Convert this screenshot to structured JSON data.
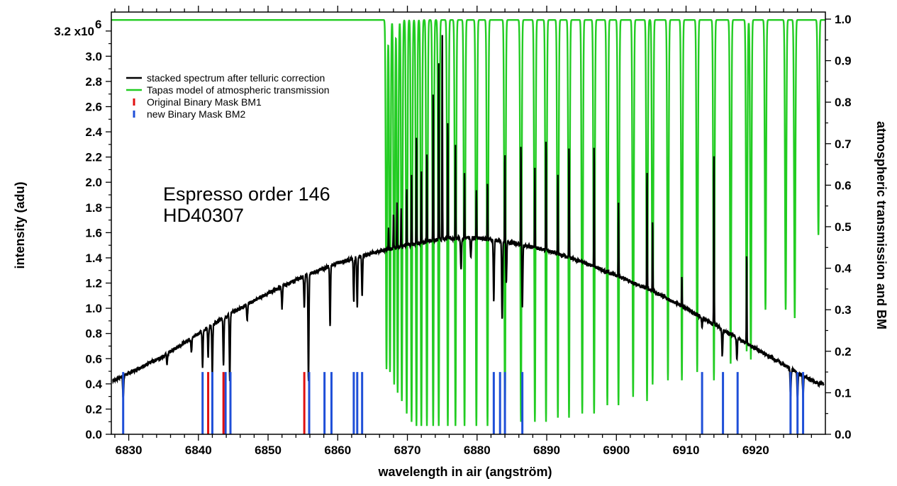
{
  "chart_data": {
    "type": "line",
    "xlabel": "wavelength in air (angström)",
    "ylabel_left": "intensity (adu)",
    "ylabel_right": "atmospheric transmission and BM",
    "xlim": [
      6827.5,
      6930
    ],
    "ylim_left": [
      0,
      3.3
    ],
    "ylim_right": [
      0,
      1.0
    ],
    "x_ticks": [
      6830,
      6840,
      6850,
      6860,
      6870,
      6880,
      6890,
      6900,
      6910,
      6920
    ],
    "y_left_ticks": [
      0.0,
      0.2,
      0.4,
      0.6,
      0.8,
      1.0,
      1.2,
      1.4,
      1.6,
      1.8,
      2.0,
      2.2,
      2.4,
      2.6,
      2.8,
      3.0
    ],
    "y_left_ticks_text": [
      "0.0",
      "0.2",
      "0.4",
      "0.6",
      "0.8",
      "1.0",
      "1.2",
      "1.4",
      "1.6",
      "1.8",
      "2.0",
      "2.2",
      "2.4",
      "2.6",
      "2.8",
      "3.0"
    ],
    "y_left_top_label": {
      "value": 3.2,
      "mantissa": "3.2 x10",
      "exponent": "6"
    },
    "y_right_ticks": [
      0.0,
      0.1,
      0.2,
      0.3,
      0.4,
      0.5,
      0.6,
      0.7,
      0.8,
      0.9,
      1.0
    ],
    "y_right_ticks_text": [
      "0.0",
      "0.1",
      "0.2",
      "0.3",
      "0.4",
      "0.5",
      "0.6",
      "0.7",
      "0.8",
      "0.9",
      "1.0"
    ],
    "grid": false,
    "legend_position": "top-left",
    "legend": [
      {
        "label": "stacked spectrum after telluric correction",
        "color": "#000000",
        "marker": "line"
      },
      {
        "label": "Tapas model of atmospheric transmission",
        "color": "#22cc22",
        "marker": "line"
      },
      {
        "label": "Original Binary Mask BM1",
        "color": "#e01010",
        "marker": "bar"
      },
      {
        "label": "new Binary Mask BM2",
        "color": "#1f4fd8",
        "marker": "bar"
      }
    ],
    "annotation": [
      "Espresso order 146",
      "HD40307"
    ],
    "series": [
      {
        "name": "stacked spectrum after telluric correction",
        "color": "#000000",
        "axis": "left",
        "continuum_x": [
          6828,
          6835,
          6840,
          6845,
          6850,
          6855,
          6860,
          6865,
          6870,
          6875,
          6880,
          6885,
          6890,
          6895,
          6900,
          6905,
          6910,
          6915,
          6920,
          6925,
          6929
        ],
        "continuum_y": [
          0.43,
          0.62,
          0.8,
          0.97,
          1.12,
          1.25,
          1.36,
          1.44,
          1.5,
          1.55,
          1.56,
          1.52,
          1.46,
          1.37,
          1.26,
          1.14,
          1.0,
          0.84,
          0.68,
          0.52,
          0.4
        ],
        "absorption_lines": [
          {
            "x": 6829.2,
            "y": 0.28
          },
          {
            "x": 6835.5,
            "y": 0.56
          },
          {
            "x": 6839.0,
            "y": 0.65
          },
          {
            "x": 6840.6,
            "y": 0.53
          },
          {
            "x": 6841.4,
            "y": 0.62
          },
          {
            "x": 6842.0,
            "y": 0.48
          },
          {
            "x": 6843.6,
            "y": 0.55
          },
          {
            "x": 6844.5,
            "y": 0.43
          },
          {
            "x": 6847.0,
            "y": 0.9
          },
          {
            "x": 6852.0,
            "y": 1.0
          },
          {
            "x": 6855.2,
            "y": 1.0
          },
          {
            "x": 6855.8,
            "y": 0.42
          },
          {
            "x": 6858.9,
            "y": 0.85
          },
          {
            "x": 6862.3,
            "y": 1.05
          },
          {
            "x": 6862.8,
            "y": 1.0
          },
          {
            "x": 6863.5,
            "y": 1.1
          },
          {
            "x": 6877.7,
            "y": 1.3
          },
          {
            "x": 6879.1,
            "y": 1.4
          },
          {
            "x": 6882.4,
            "y": 1.05
          },
          {
            "x": 6883.6,
            "y": 0.9
          },
          {
            "x": 6884.2,
            "y": 1.2
          },
          {
            "x": 6886.5,
            "y": 1.0
          },
          {
            "x": 6912.3,
            "y": 0.85
          },
          {
            "x": 6915.2,
            "y": 0.62
          },
          {
            "x": 6917.3,
            "y": 0.58
          },
          {
            "x": 6925.0,
            "y": 0.3
          },
          {
            "x": 6926.0,
            "y": 0.28
          },
          {
            "x": 6926.8,
            "y": 0.3
          }
        ],
        "telluric_spikes": [
          {
            "x": 6867.3,
            "y": 1.65
          },
          {
            "x": 6868.0,
            "y": 1.75
          },
          {
            "x": 6868.5,
            "y": 1.85
          },
          {
            "x": 6869.1,
            "y": 1.8
          },
          {
            "x": 6869.9,
            "y": 1.95
          },
          {
            "x": 6870.6,
            "y": 2.05
          },
          {
            "x": 6871.3,
            "y": 2.4
          },
          {
            "x": 6872.0,
            "y": 2.1
          },
          {
            "x": 6872.8,
            "y": 2.25
          },
          {
            "x": 6873.7,
            "y": 2.75
          },
          {
            "x": 6874.5,
            "y": 2.95
          },
          {
            "x": 6875.0,
            "y": 3.22
          },
          {
            "x": 6875.8,
            "y": 2.5
          },
          {
            "x": 6876.9,
            "y": 2.3
          },
          {
            "x": 6878.2,
            "y": 2.1
          },
          {
            "x": 6879.9,
            "y": 1.95
          },
          {
            "x": 6881.5,
            "y": 2.0
          },
          {
            "x": 6884.0,
            "y": 2.25
          },
          {
            "x": 6886.3,
            "y": 2.3
          },
          {
            "x": 6888.3,
            "y": 2.1
          },
          {
            "x": 6889.9,
            "y": 2.35
          },
          {
            "x": 6891.6,
            "y": 2.05
          },
          {
            "x": 6893.2,
            "y": 2.3
          },
          {
            "x": 6896.8,
            "y": 2.3
          },
          {
            "x": 6900.3,
            "y": 1.85
          },
          {
            "x": 6904.4,
            "y": 2.1
          },
          {
            "x": 6905.2,
            "y": 1.7
          },
          {
            "x": 6909.4,
            "y": 1.25
          },
          {
            "x": 6914.0,
            "y": 2.25
          },
          {
            "x": 6918.7,
            "y": 1.45
          }
        ]
      },
      {
        "name": "Tapas model of atmospheric transmission",
        "color": "#22cc22",
        "axis": "right",
        "baseline": 0.998,
        "absorption_lines": [
          {
            "x": 6867.0,
            "min": 0.16
          },
          {
            "x": 6867.5,
            "min": 0.15
          },
          {
            "x": 6868.1,
            "min": 0.12
          },
          {
            "x": 6868.6,
            "min": 0.1
          },
          {
            "x": 6869.2,
            "min": 0.08
          },
          {
            "x": 6869.9,
            "min": 0.05
          },
          {
            "x": 6870.6,
            "min": 0.03
          },
          {
            "x": 6871.3,
            "min": 0.02
          },
          {
            "x": 6872.0,
            "min": 0.02
          },
          {
            "x": 6872.8,
            "min": 0.02
          },
          {
            "x": 6873.7,
            "min": 0.02
          },
          {
            "x": 6874.5,
            "min": 0.02
          },
          {
            "x": 6875.8,
            "min": 0.02
          },
          {
            "x": 6876.9,
            "min": 0.02
          },
          {
            "x": 6878.2,
            "min": 0.02
          },
          {
            "x": 6879.9,
            "min": 0.02
          },
          {
            "x": 6881.5,
            "min": 0.02
          },
          {
            "x": 6884.0,
            "min": 0.03
          },
          {
            "x": 6886.3,
            "min": 0.03
          },
          {
            "x": 6888.3,
            "min": 0.03
          },
          {
            "x": 6889.9,
            "min": 0.03
          },
          {
            "x": 6891.6,
            "min": 0.04
          },
          {
            "x": 6893.2,
            "min": 0.04
          },
          {
            "x": 6895.1,
            "min": 0.05
          },
          {
            "x": 6896.8,
            "min": 0.05
          },
          {
            "x": 6898.7,
            "min": 0.07
          },
          {
            "x": 6900.3,
            "min": 0.07
          },
          {
            "x": 6902.4,
            "min": 0.09
          },
          {
            "x": 6904.4,
            "min": 0.08
          },
          {
            "x": 6905.2,
            "min": 0.12
          },
          {
            "x": 6907.4,
            "min": 0.13
          },
          {
            "x": 6909.4,
            "min": 0.13
          },
          {
            "x": 6911.6,
            "min": 0.15
          },
          {
            "x": 6914.0,
            "min": 0.13
          },
          {
            "x": 6916.4,
            "min": 0.17
          },
          {
            "x": 6918.7,
            "min": 0.2
          },
          {
            "x": 6919.3,
            "min": 0.18
          },
          {
            "x": 6921.4,
            "min": 0.3
          },
          {
            "x": 6924.3,
            "min": 0.3
          },
          {
            "x": 6925.6,
            "min": 0.28
          },
          {
            "x": 6929.0,
            "min": 0.48
          }
        ]
      }
    ],
    "mask_BM1": {
      "name": "Original Binary Mask BM1",
      "color": "#e01010",
      "axis": "right",
      "x": [
        6841.4,
        6843.6,
        6855.2
      ]
    },
    "mask_BM2": {
      "name": "new Binary Mask BM2",
      "color": "#1f4fd8",
      "axis": "right",
      "x": [
        6829.2,
        6840.6,
        6842.0,
        6843.9,
        6844.6,
        6855.9,
        6858.1,
        6859.1,
        6862.3,
        6862.8,
        6863.5,
        6882.4,
        6883.3,
        6884.0,
        6886.5,
        6912.3,
        6915.3,
        6917.4,
        6925.0,
        6926.0,
        6926.8
      ],
      "heights": [
        0.15,
        0.15,
        0.15,
        0.15,
        0.15,
        0.15,
        0.15,
        0.15,
        0.15,
        0.15,
        0.15,
        0.15,
        0.15,
        0.15,
        0.15,
        0.15,
        0.15,
        0.15,
        0.15,
        0.15,
        0.15
      ]
    }
  }
}
